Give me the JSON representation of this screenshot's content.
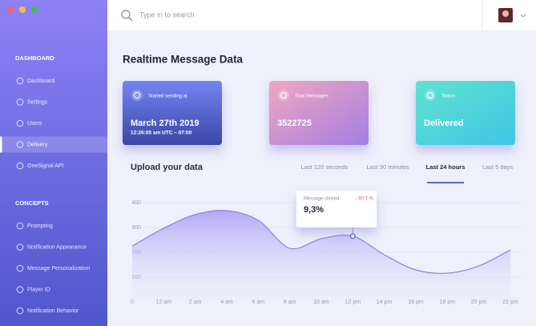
{
  "sidebar": {
    "sections": [
      {
        "title": "DASHBOARD",
        "items": [
          "Dashboard",
          "Settings",
          "Users",
          "Delivery",
          "OneSignal API"
        ]
      },
      {
        "title": "CONCEPTS",
        "items": [
          "Prompting",
          "Notification Appearance",
          "Message Personalization",
          "Player ID",
          "Notification Behavior"
        ]
      }
    ],
    "active_section": 0,
    "active_item": 3
  },
  "search": {
    "placeholder": "Type in to search"
  },
  "page_title": "Realtime Message Data",
  "cards": [
    {
      "label": "Started sending at",
      "value": "March 27th 2019",
      "detail": "12:26:05 am UTC – 07:00"
    },
    {
      "label": "Total Messages",
      "value": "3522725"
    },
    {
      "label": "Status",
      "value": "Delivered"
    }
  ],
  "upload": {
    "title": "Upload your data",
    "tabs": [
      "Last 120 seconds",
      "Last 30 minutes",
      "Last 24 hours",
      "Last 5 days"
    ],
    "active_tab": 2
  },
  "tooltip": {
    "label": "Message clicked",
    "change": "↓ 90,7 %",
    "value": "9,3%"
  },
  "chart_data": {
    "type": "area",
    "categories": [
      "0",
      "12 am",
      "2 am",
      "4 am",
      "6 am",
      "8 am",
      "10 am",
      "12 pm",
      "14 pm",
      "16 pm",
      "18 pm",
      "20 pm",
      "22 pm"
    ],
    "values": [
      225,
      297,
      352,
      368,
      329,
      216,
      255,
      265,
      190,
      129,
      116,
      145,
      210
    ],
    "color": "#8e80e8",
    "ylim": [
      0,
      400
    ],
    "yticks": [
      100,
      200,
      300,
      400
    ],
    "grid": true
  }
}
